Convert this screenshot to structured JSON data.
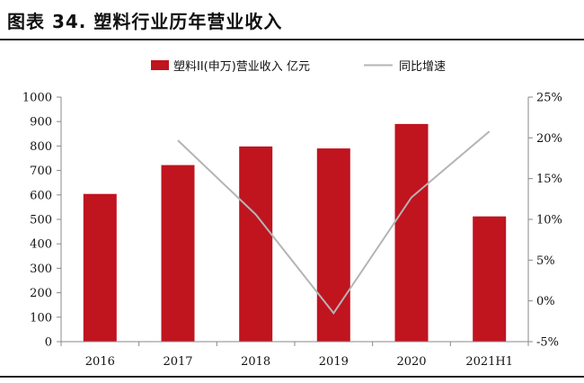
{
  "figure": {
    "title": "图表 34. 塑料行业历年营业收入"
  },
  "chart_data": {
    "type": "bar",
    "categories": [
      "2016",
      "2017",
      "2018",
      "2019",
      "2020",
      "2021H1"
    ],
    "series": [
      {
        "name": "塑料II(申万)营业收入 亿元",
        "kind": "bar",
        "axis": "left",
        "color": "#c0141f",
        "values": [
          604,
          722,
          798,
          790,
          890,
          512
        ]
      },
      {
        "name": "同比增速",
        "kind": "line",
        "axis": "right",
        "color": "#b4b4b4",
        "values": [
          null,
          19.7,
          10.6,
          -1.5,
          12.7,
          20.8
        ]
      }
    ],
    "left_axis": {
      "min": 0,
      "max": 1000,
      "step": 100,
      "ticks": [
        "0",
        "100",
        "200",
        "300",
        "400",
        "500",
        "600",
        "700",
        "800",
        "900",
        "1000"
      ]
    },
    "right_axis": {
      "min": -5,
      "max": 25,
      "step": 5,
      "ticks": [
        "-5%",
        "0%",
        "5%",
        "10%",
        "15%",
        "20%",
        "25%"
      ]
    },
    "legend_position": "top-center",
    "grid": false
  }
}
